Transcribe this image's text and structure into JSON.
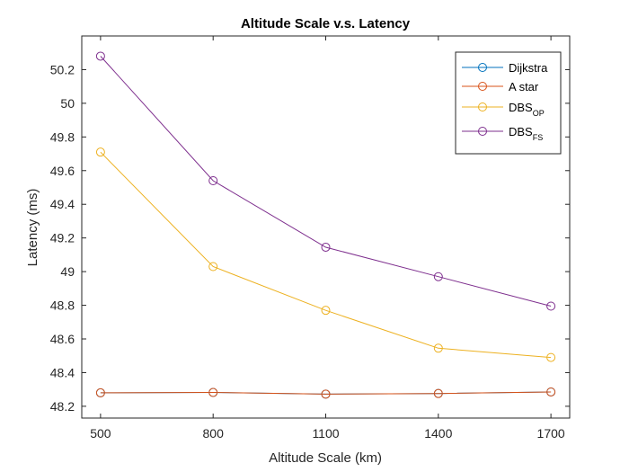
{
  "chart_data": {
    "type": "line",
    "title": "Altitude Scale v.s. Latency",
    "xlabel": "Altitude Scale (km)",
    "ylabel": "Latency (ms)",
    "x": [
      500,
      800,
      1100,
      1400,
      1700
    ],
    "xticks": [
      "500",
      "800",
      "1100",
      "1400",
      "1700"
    ],
    "xlim": [
      450,
      1750
    ],
    "yticks": [
      "48.2",
      "48.4",
      "48.6",
      "48.8",
      "49",
      "49.2",
      "49.4",
      "49.6",
      "49.8",
      "50",
      "50.2"
    ],
    "ylim": [
      48.13,
      50.4
    ],
    "grid": false,
    "legend_position": "top-right",
    "marker": "circle",
    "series": [
      {
        "name": "Dijkstra",
        "name_base": "Dijkstra",
        "name_sub": "",
        "color": "#0072BD",
        "values": [
          48.28,
          48.282,
          48.272,
          48.276,
          48.285
        ]
      },
      {
        "name": "A star",
        "name_base": "A star",
        "name_sub": "",
        "color": "#D95319",
        "values": [
          48.28,
          48.282,
          48.272,
          48.276,
          48.285
        ]
      },
      {
        "name": "DBS_OP",
        "name_base": "DBS",
        "name_sub": "OP",
        "color": "#EDB120",
        "values": [
          49.71,
          49.03,
          48.77,
          48.545,
          48.49
        ]
      },
      {
        "name": "DBS_FS",
        "name_base": "DBS",
        "name_sub": "FS",
        "color": "#7E2F8E",
        "values": [
          50.28,
          49.54,
          49.145,
          48.97,
          48.795
        ]
      }
    ]
  }
}
